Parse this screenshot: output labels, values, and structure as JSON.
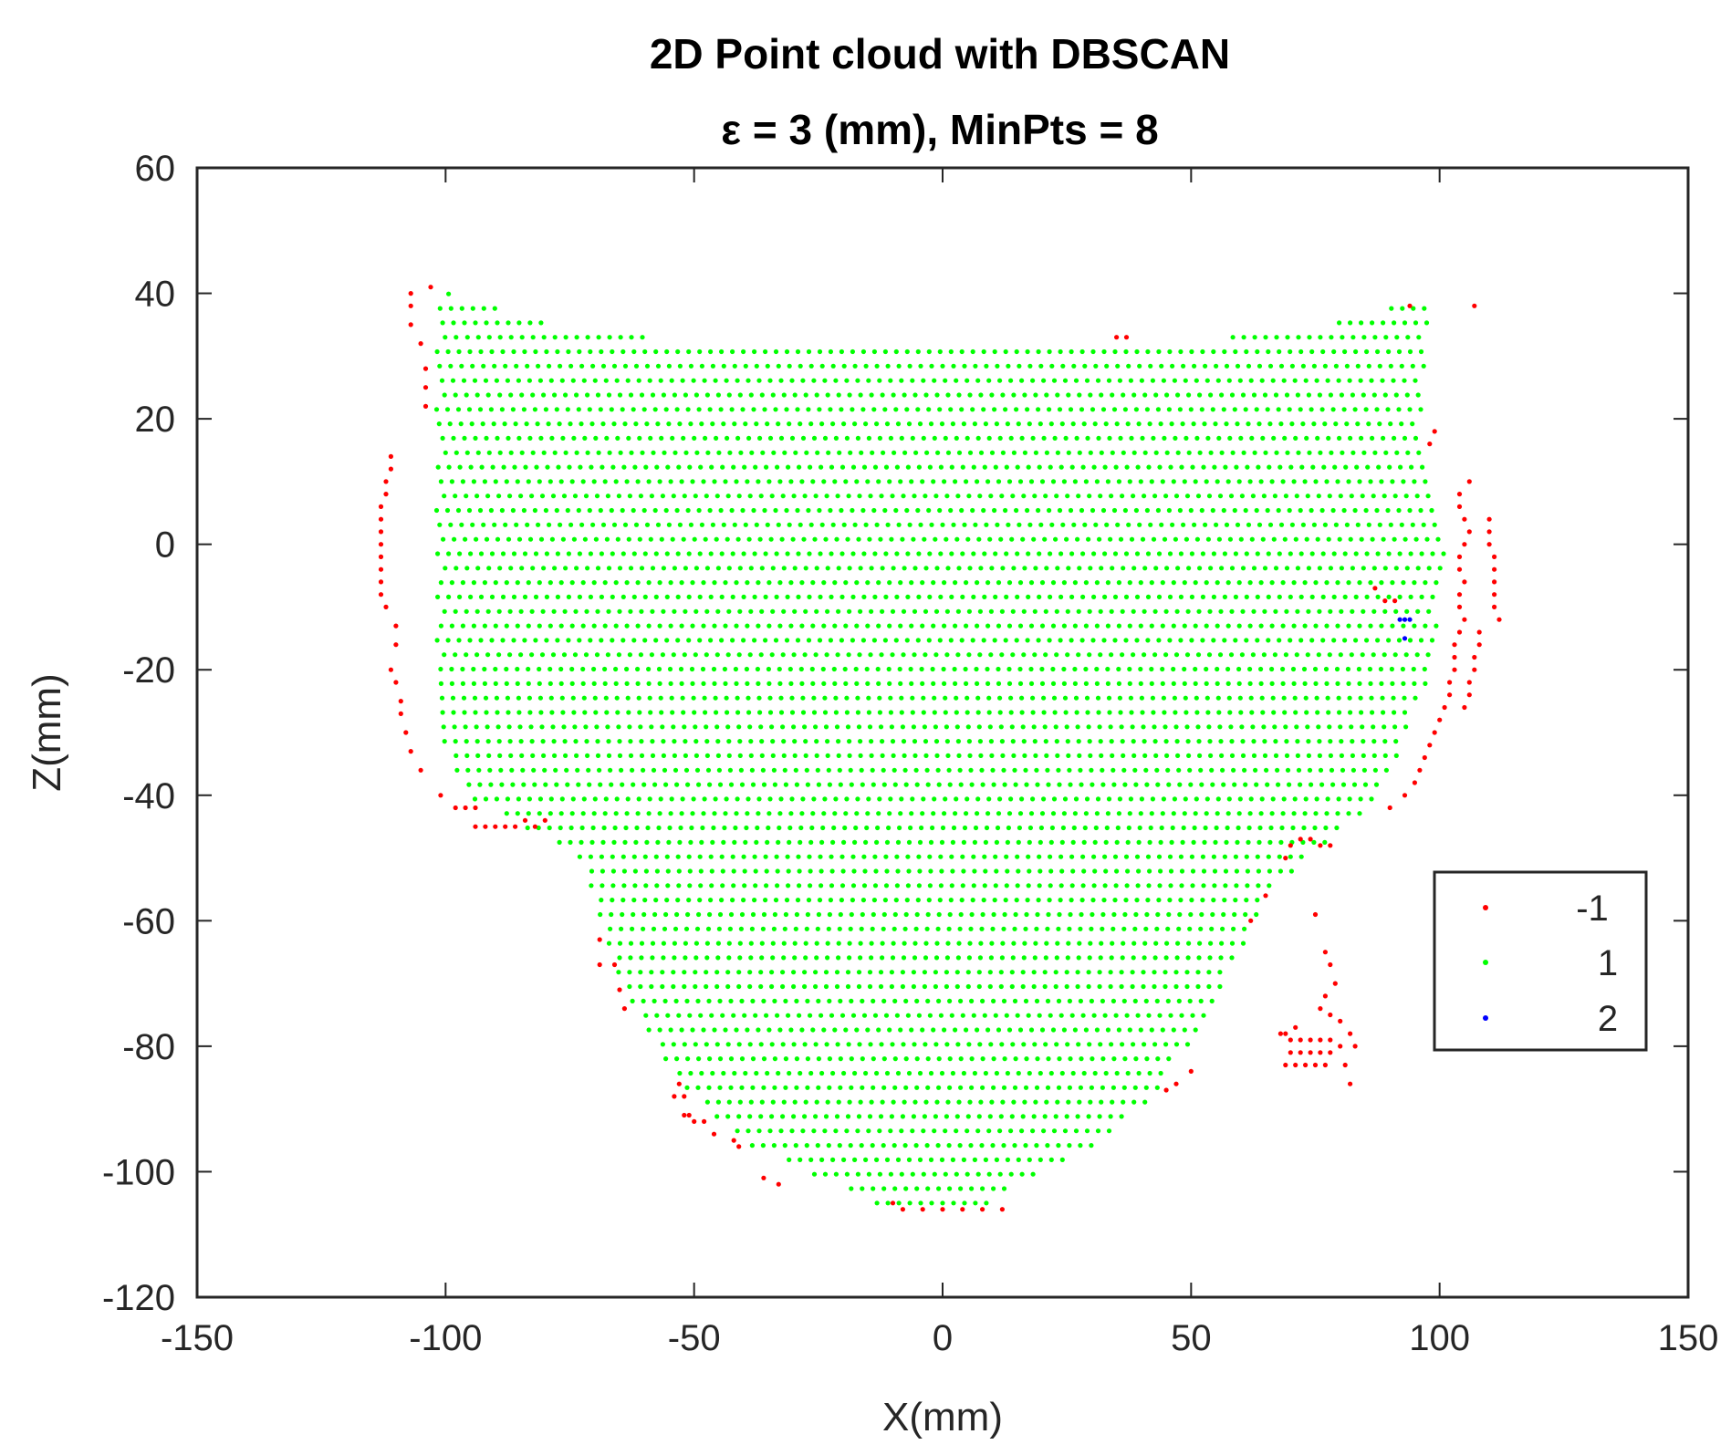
{
  "chart_data": {
    "type": "scatter",
    "title": "2D Point cloud with DBSCAN",
    "subtitle": "ε = 3 (mm),  MinPts = 8",
    "xlabel": "X(mm)",
    "ylabel": "Z(mm)",
    "xlim": [
      -150,
      150
    ],
    "ylim": [
      -120,
      60
    ],
    "xticks": [
      -150,
      -100,
      -50,
      0,
      50,
      100,
      150
    ],
    "yticks": [
      60,
      40,
      20,
      0,
      -20,
      -40,
      -60,
      -80,
      -100,
      -120
    ],
    "xtick_labels": [
      "-150",
      "-100",
      "-50",
      "0",
      "50",
      "100",
      "150"
    ],
    "ytick_labels": [
      "60",
      "40",
      "20",
      "0",
      "-20",
      "-40",
      "-60",
      "-80",
      "-100",
      "-120"
    ],
    "grid": false,
    "legend_position": "right",
    "series": [
      {
        "name": "-1",
        "color": "#ff0000",
        "points": [
          [
            -103,
            41
          ],
          [
            -107,
            40
          ],
          [
            -107,
            38
          ],
          [
            -107,
            35
          ],
          [
            -105,
            32
          ],
          [
            -104,
            28
          ],
          [
            -104,
            25
          ],
          [
            -104,
            22
          ],
          [
            -111,
            14
          ],
          [
            -111,
            12
          ],
          [
            -112,
            10
          ],
          [
            -112,
            8
          ],
          [
            -113,
            6
          ],
          [
            -113,
            4
          ],
          [
            -113,
            2
          ],
          [
            -113,
            0
          ],
          [
            -113,
            -2
          ],
          [
            -113,
            -4
          ],
          [
            -113,
            -6
          ],
          [
            -113,
            -8
          ],
          [
            -112,
            -10
          ],
          [
            -110,
            -13
          ],
          [
            -110,
            -16
          ],
          [
            -111,
            -20
          ],
          [
            -110,
            -22
          ],
          [
            -109,
            -25
          ],
          [
            -109,
            -27
          ],
          [
            -108,
            -30
          ],
          [
            -107,
            -33
          ],
          [
            -105,
            -36
          ],
          [
            -101,
            -40
          ],
          [
            -98,
            -42
          ],
          [
            -96,
            -42
          ],
          [
            -94,
            -42
          ],
          [
            -94,
            -45
          ],
          [
            -92,
            -45
          ],
          [
            -90,
            -45
          ],
          [
            -88,
            -45
          ],
          [
            -86,
            -45
          ],
          [
            -84,
            -44
          ],
          [
            -82,
            -45
          ],
          [
            -80,
            -44
          ],
          [
            -69,
            -63
          ],
          [
            -69,
            -67
          ],
          [
            -66,
            -67
          ],
          [
            -65,
            -71
          ],
          [
            -64,
            -74
          ],
          [
            -53,
            -86
          ],
          [
            -54,
            -88
          ],
          [
            -52,
            -88
          ],
          [
            -52,
            -91
          ],
          [
            -51,
            -91
          ],
          [
            -50,
            -92
          ],
          [
            -48,
            -92
          ],
          [
            -46,
            -94
          ],
          [
            -42,
            -95
          ],
          [
            -41,
            -96
          ],
          [
            -36,
            -101
          ],
          [
            -33,
            -102
          ],
          [
            -10,
            -105
          ],
          [
            -8,
            -106
          ],
          [
            -4,
            -106
          ],
          [
            0,
            -106
          ],
          [
            4,
            -106
          ],
          [
            8,
            -106
          ],
          [
            12,
            -106
          ],
          [
            35,
            33
          ],
          [
            37,
            33
          ],
          [
            94,
            38
          ],
          [
            107,
            38
          ],
          [
            99,
            18
          ],
          [
            98,
            16
          ],
          [
            106,
            10
          ],
          [
            104,
            8
          ],
          [
            104,
            6
          ],
          [
            105,
            4
          ],
          [
            106,
            2
          ],
          [
            105,
            0
          ],
          [
            104,
            -2
          ],
          [
            104,
            -4
          ],
          [
            105,
            -6
          ],
          [
            104,
            -8
          ],
          [
            104,
            -10
          ],
          [
            105,
            -12
          ],
          [
            104,
            -14
          ],
          [
            103,
            -16
          ],
          [
            103,
            -18
          ],
          [
            103,
            -20
          ],
          [
            102,
            -22
          ],
          [
            102,
            -24
          ],
          [
            101,
            -26
          ],
          [
            100,
            -28
          ],
          [
            99,
            -30
          ],
          [
            98,
            -32
          ],
          [
            97,
            -34
          ],
          [
            96,
            -36
          ],
          [
            95,
            -38
          ],
          [
            93,
            -40
          ],
          [
            90,
            -42
          ],
          [
            87,
            -7
          ],
          [
            89,
            -9
          ],
          [
            91,
            -9
          ],
          [
            110,
            4
          ],
          [
            110,
            2
          ],
          [
            110,
            0
          ],
          [
            111,
            -2
          ],
          [
            111,
            -4
          ],
          [
            111,
            -6
          ],
          [
            111,
            -8
          ],
          [
            111,
            -10
          ],
          [
            112,
            -12
          ],
          [
            108,
            -14
          ],
          [
            108,
            -16
          ],
          [
            107,
            -18
          ],
          [
            107,
            -20
          ],
          [
            106,
            -22
          ],
          [
            106,
            -24
          ],
          [
            105,
            -26
          ],
          [
            72,
            -47
          ],
          [
            74,
            -47
          ],
          [
            76,
            -48
          ],
          [
            78,
            -48
          ],
          [
            70,
            -48
          ],
          [
            69,
            -50
          ],
          [
            65,
            -56
          ],
          [
            62,
            -60
          ],
          [
            75,
            -59
          ],
          [
            77,
            -65
          ],
          [
            78,
            -67
          ],
          [
            79,
            -70
          ],
          [
            77,
            -72
          ],
          [
            76,
            -74
          ],
          [
            78,
            -75
          ],
          [
            80,
            -76
          ],
          [
            71,
            -77
          ],
          [
            68,
            -78
          ],
          [
            69,
            -78
          ],
          [
            70,
            -79
          ],
          [
            72,
            -79
          ],
          [
            74,
            -79
          ],
          [
            76,
            -79
          ],
          [
            78,
            -79
          ],
          [
            82,
            -78
          ],
          [
            83,
            -80
          ],
          [
            80,
            -80
          ],
          [
            70,
            -81
          ],
          [
            72,
            -81
          ],
          [
            74,
            -81
          ],
          [
            76,
            -81
          ],
          [
            78,
            -81
          ],
          [
            69,
            -83
          ],
          [
            71,
            -83
          ],
          [
            73,
            -83
          ],
          [
            75,
            -83
          ],
          [
            77,
            -83
          ],
          [
            81,
            -83
          ],
          [
            82,
            -86
          ],
          [
            50,
            -84
          ],
          [
            47,
            -86
          ],
          [
            45,
            -87
          ]
        ]
      },
      {
        "name": "1",
        "color": "#00ff00",
        "points": []
      },
      {
        "name": "2",
        "color": "#0000ff",
        "points": [
          [
            92,
            -12
          ],
          [
            93,
            -12
          ],
          [
            94,
            -12
          ],
          [
            93,
            -15
          ]
        ]
      }
    ]
  }
}
